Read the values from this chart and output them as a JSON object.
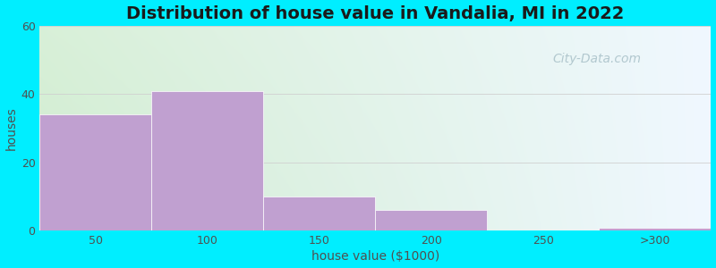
{
  "title": "Distribution of house value in Vandalia, MI in 2022",
  "xlabel": "house value ($1000)",
  "ylabel": "houses",
  "bar_labels": [
    "50",
    "100",
    "150",
    "200",
    "250",
    ">300"
  ],
  "bar_heights": [
    34,
    41,
    10,
    6,
    0,
    1
  ],
  "bar_color": "#c0a0d0",
  "bar_edgecolor": "#ffffff",
  "bar_linewidth": 0.5,
  "ylim": [
    0,
    60
  ],
  "yticks": [
    0,
    20,
    40,
    60
  ],
  "background_outer": "#00eeff",
  "bg_topleft": "#d8f0d8",
  "bg_topright": "#e8f4f8",
  "bg_bottomleft": "#d0ecd0",
  "bg_bottomright": "#e0eff8",
  "grid_color": "#d0d0d0",
  "grid_linewidth": 0.6,
  "title_fontsize": 14,
  "axis_label_fontsize": 10,
  "tick_fontsize": 9,
  "tick_color": "#505050",
  "watermark_text": "City-Data.com",
  "watermark_color": "#a8c0c8",
  "watermark_fontsize": 10
}
